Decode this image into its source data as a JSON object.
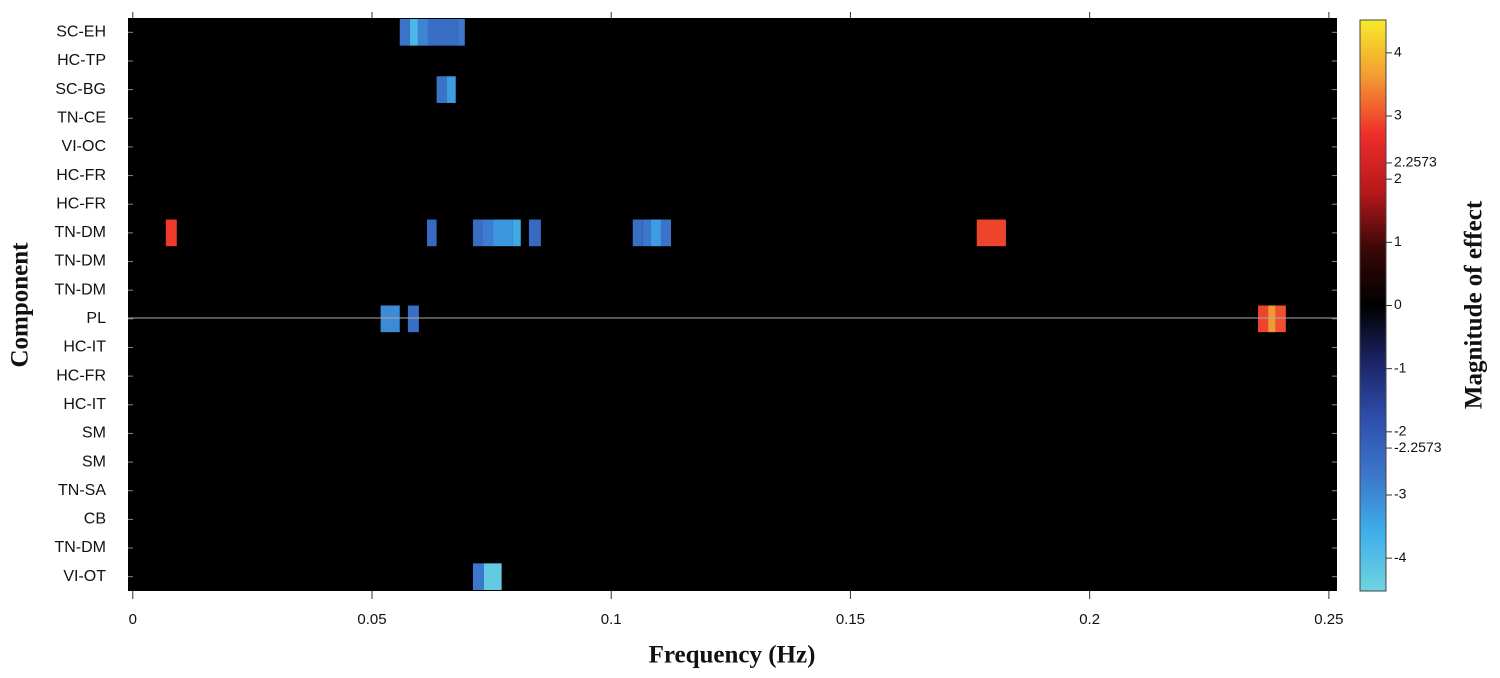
{
  "chart_data": {
    "type": "heatmap",
    "x_label": "Frequency (Hz)",
    "y_label": "Component",
    "colorbar_label": "Magnitude of effect",
    "categories": [
      "SC-EH",
      "HC-TP",
      "SC-BG",
      "TN-CE",
      "VI-OC",
      "HC-FR",
      "HC-FR",
      "TN-DM",
      "TN-DM",
      "TN-DM",
      "PL",
      "HC-IT",
      "HC-FR",
      "HC-IT",
      "SM",
      "SM",
      "TN-SA",
      "CB",
      "TN-DM",
      "VI-OT"
    ],
    "xlim": [
      -0.001,
      0.2517
    ],
    "xticks": [
      0,
      0.05,
      0.1,
      0.15,
      0.2,
      0.25
    ],
    "clim": [
      -4.52,
      4.52
    ],
    "cticks": [
      -4,
      -3,
      -2.2573,
      -2,
      -1,
      0,
      1,
      2,
      2.2573,
      3,
      4
    ],
    "colormap": [
      "#6fd3e0",
      "#3fb0ea",
      "#3c78cc",
      "#2f4fae",
      "#1c2468",
      "#000000",
      "#3a0808",
      "#b8181c",
      "#ee2e2a",
      "#f39a32",
      "#f7ec2a"
    ],
    "rows": [
      {
        "cells": [
          {
            "bins": [
              0.0558,
              0.0579
            ],
            "value": -2.6
          },
          {
            "bins": [
              0.0579,
              0.0596
            ],
            "value": -3.8
          },
          {
            "bins": [
              0.0596,
              0.0617
            ],
            "value": -2.9
          },
          {
            "bins": [
              0.0617,
              0.0679
            ],
            "value": -2.5
          },
          {
            "bins": [
              0.0679,
              0.0694
            ],
            "value": -2.7
          }
        ]
      },
      {
        "cells": []
      },
      {
        "cells": [
          {
            "bins": [
              0.0635,
              0.0656
            ],
            "value": -2.6
          },
          {
            "bins": [
              0.0656,
              0.0675
            ],
            "value": -3.3
          }
        ]
      },
      {
        "cells": []
      },
      {
        "cells": []
      },
      {
        "cells": []
      },
      {
        "cells": []
      },
      {
        "cells": [
          {
            "bins": [
              0.0069,
              0.0092
            ],
            "value": 2.8
          },
          {
            "bins": [
              0.0615,
              0.0635
            ],
            "value": -2.4
          },
          {
            "bins": [
              0.0711,
              0.0732
            ],
            "value": -2.5
          },
          {
            "bins": [
              0.0732,
              0.0753
            ],
            "value": -2.8
          },
          {
            "bins": [
              0.0753,
              0.0794
            ],
            "value": -3.2
          },
          {
            "bins": [
              0.0794,
              0.0811
            ],
            "value": -3.5
          },
          {
            "bins": [
              0.0828,
              0.0853
            ],
            "value": -2.4
          },
          {
            "bins": [
              0.1045,
              0.1066
            ],
            "value": -2.5
          },
          {
            "bins": [
              0.1066,
              0.1083
            ],
            "value": -2.7
          },
          {
            "bins": [
              0.1083,
              0.1104
            ],
            "value": -3.3
          },
          {
            "bins": [
              0.1104,
              0.1125
            ],
            "value": -2.6
          },
          {
            "bins": [
              0.1764,
              0.1825
            ],
            "value": 2.9
          }
        ]
      },
      {
        "cells": []
      },
      {
        "cells": []
      },
      {
        "cells": [
          {
            "bins": [
              0.0518,
              0.0558
            ],
            "value": -3.0
          },
          {
            "bins": [
              0.0575,
              0.0598
            ],
            "value": -2.5
          },
          {
            "bins": [
              0.2352,
              0.2373
            ],
            "value": 2.9
          },
          {
            "bins": [
              0.2373,
              0.2389
            ],
            "value": 3.6
          },
          {
            "bins": [
              0.2389,
              0.241
            ],
            "value": 3.0
          }
        ]
      },
      {
        "cells": []
      },
      {
        "cells": []
      },
      {
        "cells": []
      },
      {
        "cells": []
      },
      {
        "cells": []
      },
      {
        "cells": []
      },
      {
        "cells": []
      },
      {
        "cells": []
      },
      {
        "cells": [
          {
            "bins": [
              0.0711,
              0.0734
            ],
            "value": -2.7
          },
          {
            "bins": [
              0.0734,
              0.0771
            ],
            "value": -4.3
          }
        ]
      }
    ]
  }
}
